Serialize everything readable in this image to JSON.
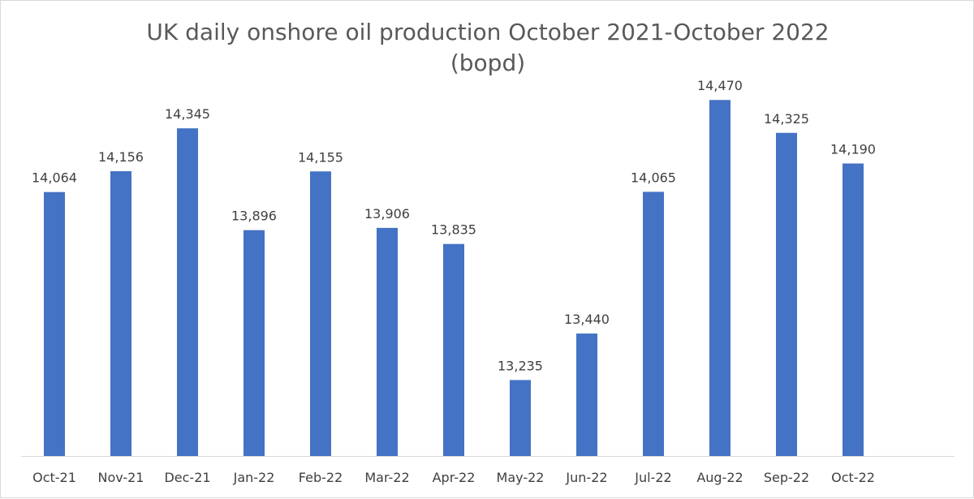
{
  "chart_data": {
    "type": "bar",
    "title": "UK daily onshore oil production October 2021-October 2022",
    "subtitle": "(bopd)",
    "xlabel": "",
    "ylabel": "",
    "categories": [
      "Oct-21",
      "Nov-21",
      "Dec-21",
      "Jan-22",
      "Feb-22",
      "Mar-22",
      "Apr-22",
      "May-22",
      "Jun-22",
      "Jul-22",
      "Aug-22",
      "Sep-22",
      "Oct-22"
    ],
    "values": [
      14064,
      14156,
      14345,
      13896,
      14155,
      13906,
      13835,
      13235,
      13440,
      14065,
      14470,
      14325,
      14190
    ],
    "data_labels": [
      "14,064",
      "14,156",
      "14,345",
      "13,896",
      "14,155",
      "13,906",
      "13,835",
      "13,235",
      "13,440",
      "14,065",
      "14,470",
      "14,325",
      "14,190"
    ],
    "ylim": [
      12900,
      14800
    ],
    "grid": false,
    "legend": "none",
    "bar_color": "#4472c4"
  }
}
